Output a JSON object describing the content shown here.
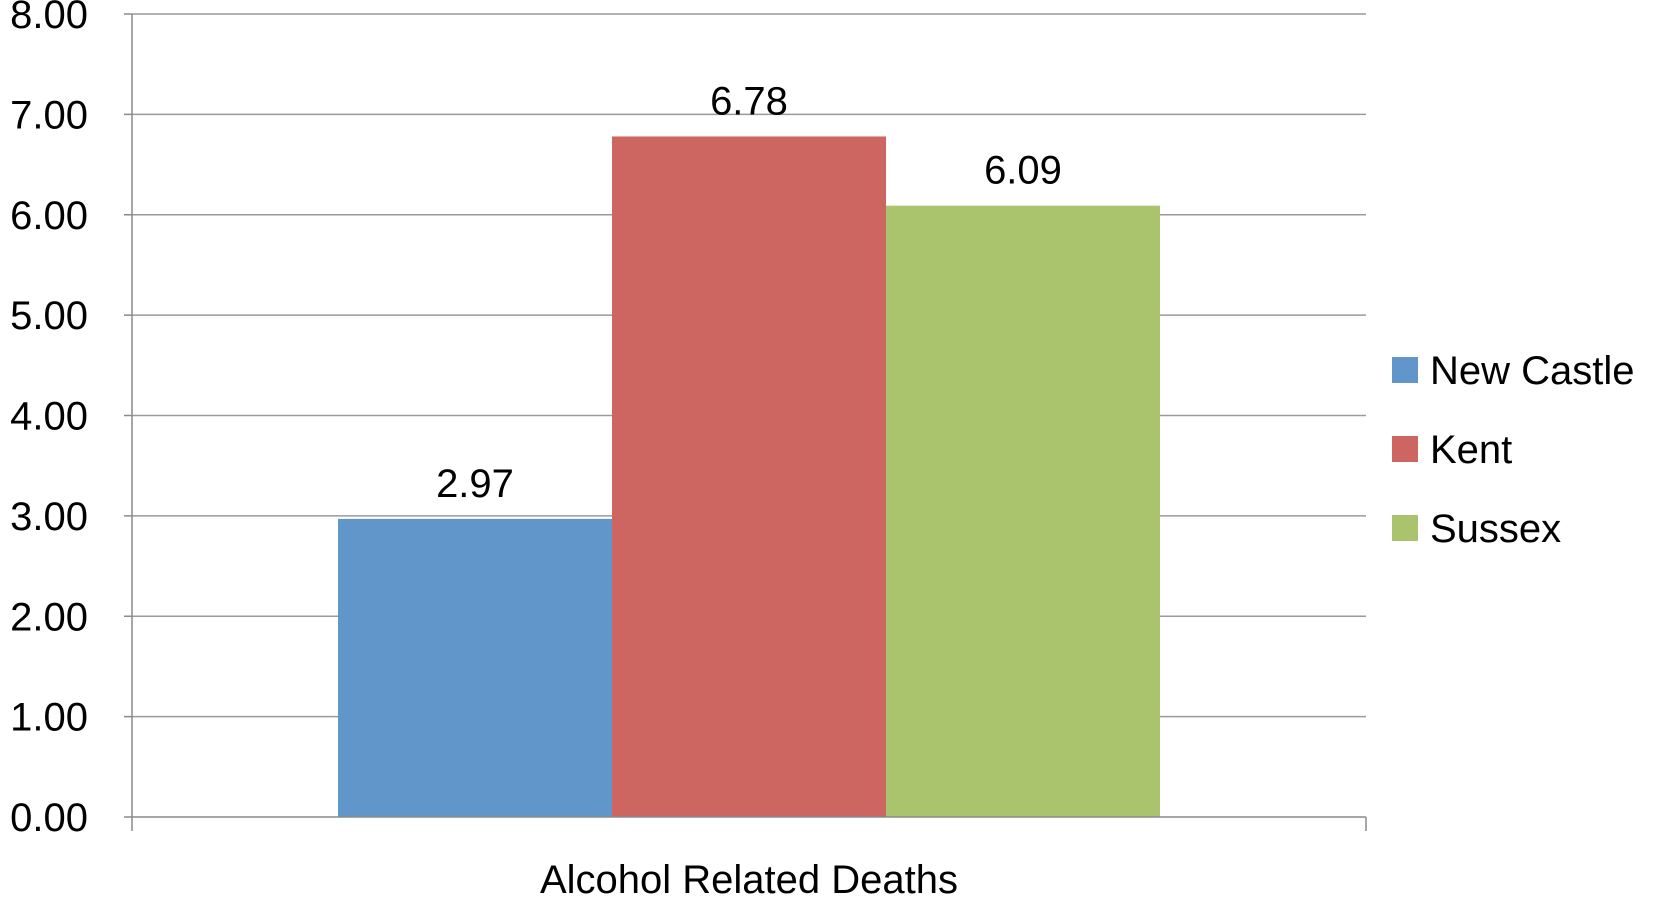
{
  "chart_data": {
    "type": "bar",
    "title": "",
    "xlabel": "",
    "ylabel": "",
    "categories": [
      "Alcohol Related Deaths"
    ],
    "series": [
      {
        "name": "New Castle",
        "values": [
          2.97
        ],
        "color": "#6096c9"
      },
      {
        "name": "Kent",
        "values": [
          6.78
        ],
        "color": "#cd6660"
      },
      {
        "name": "Sussex",
        "values": [
          6.09
        ],
        "color": "#a9c46c"
      }
    ],
    "data_labels": [
      "2.97",
      "6.78",
      "6.09"
    ],
    "y_ticks": [
      "0.00",
      "1.00",
      "2.00",
      "3.00",
      "4.00",
      "5.00",
      "6.00",
      "7.00",
      "8.00"
    ],
    "ylim": [
      0,
      8
    ],
    "grid": true,
    "legend_position": "right"
  }
}
